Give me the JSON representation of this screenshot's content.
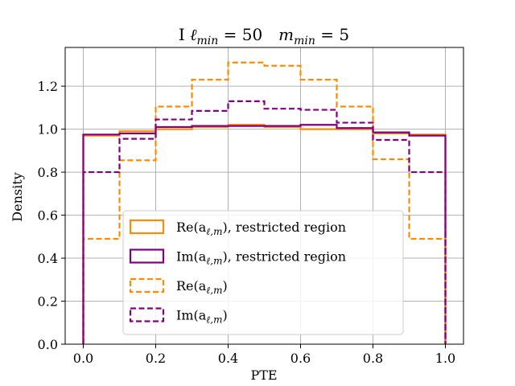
{
  "chart_data": {
    "type": "step-histogram",
    "title_parts": {
      "prefix": "I ",
      "l_symbol": "ℓ",
      "l_sub": "min",
      "l_eq": " = 50",
      "m_symbol": "m",
      "m_sub": "min",
      "m_eq": " = 5"
    },
    "xlabel": "PTE",
    "ylabel": "Density",
    "xlim": [
      -0.05,
      1.05
    ],
    "ylim": [
      0.0,
      1.38
    ],
    "xticks": [
      0.0,
      0.2,
      0.4,
      0.6,
      0.8,
      1.0
    ],
    "xtick_labels": [
      "0.0",
      "0.2",
      "0.4",
      "0.6",
      "0.8",
      "1.0"
    ],
    "yticks": [
      0.0,
      0.2,
      0.4,
      0.6,
      0.8,
      1.0,
      1.2
    ],
    "ytick_labels": [
      "0.0",
      "0.2",
      "0.4",
      "0.6",
      "0.8",
      "1.0",
      "1.2"
    ],
    "grid": true,
    "legend_position": "lower-center",
    "bin_edges": [
      0.0,
      0.1,
      0.2,
      0.3,
      0.4,
      0.5,
      0.6,
      0.7,
      0.8,
      0.9,
      1.0
    ],
    "series": [
      {
        "label_prefix": "Re(a",
        "label_sub": "ℓ,m",
        "label_suffix": "), restricted region",
        "color": "#ff8c00",
        "dash": "solid",
        "values": [
          0.97,
          0.99,
          1.0,
          1.01,
          1.02,
          1.01,
          1.0,
          1.0,
          0.98,
          0.975
        ]
      },
      {
        "label_prefix": "Im(a",
        "label_sub": "ℓ,m",
        "label_suffix": "), restricted region",
        "color": "#800080",
        "dash": "solid",
        "values": [
          0.975,
          0.98,
          1.01,
          1.015,
          1.015,
          1.015,
          1.02,
          1.005,
          0.985,
          0.97
        ]
      },
      {
        "label_prefix": "Re(a",
        "label_sub": "ℓ,m",
        "label_suffix": ")",
        "color": "#ff8c00",
        "dash": "dashed",
        "values": [
          0.49,
          0.855,
          1.105,
          1.23,
          1.31,
          1.295,
          1.23,
          1.105,
          0.86,
          0.49
        ]
      },
      {
        "label_prefix": "Im(a",
        "label_sub": "ℓ,m",
        "label_suffix": ")",
        "color": "#800080",
        "dash": "dashed",
        "values": [
          0.8,
          0.955,
          1.045,
          1.085,
          1.13,
          1.095,
          1.09,
          1.03,
          0.95,
          0.8
        ]
      }
    ]
  }
}
